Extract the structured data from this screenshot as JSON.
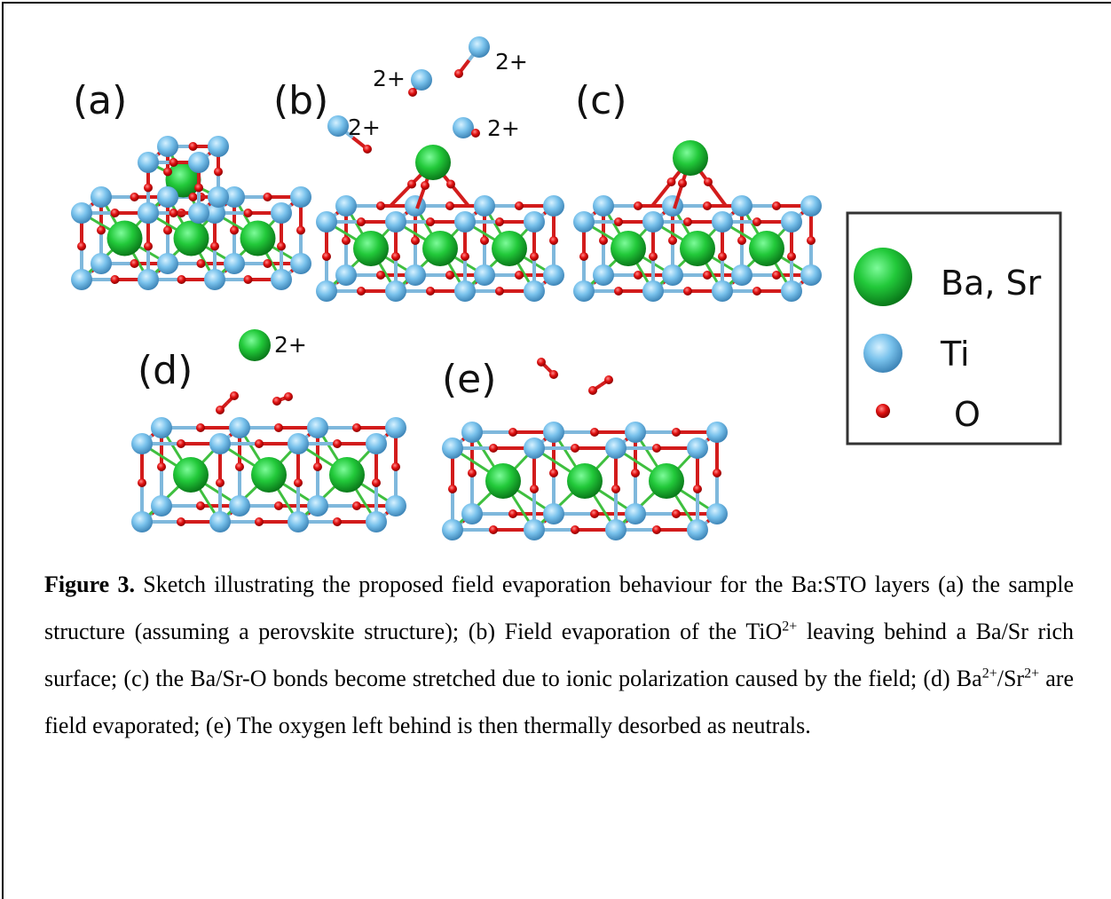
{
  "panels": [
    {
      "label": "(a)"
    },
    {
      "label": "(b)",
      "charges": [
        "2+",
        "2+",
        "2+",
        "2+"
      ]
    },
    {
      "label": "(c)"
    },
    {
      "label": "(d)",
      "charges": [
        "2+"
      ]
    },
    {
      "label": "(e)"
    }
  ],
  "legend": {
    "items": [
      {
        "label": "Ba, Sr"
      },
      {
        "label": "Ti"
      },
      {
        "label": "O"
      }
    ]
  },
  "caption": {
    "label": "Figure 3.",
    "parts": [
      " Sketch illustrating the proposed field evaporation behaviour for the Ba:STO layers (a) the sample structure (assuming a perovskite structure); (b) Field evaporation of the TiO",
      "2+",
      " leaving behind a Ba/Sr rich surface; (c) the Ba/Sr-O bonds become stretched due to ionic polarization caused by the field; (d) Ba",
      "2+",
      "/Sr",
      "2+",
      " are field evaporated; (e) The oxygen left behind is then thermally desorbed as neutrals."
    ]
  }
}
